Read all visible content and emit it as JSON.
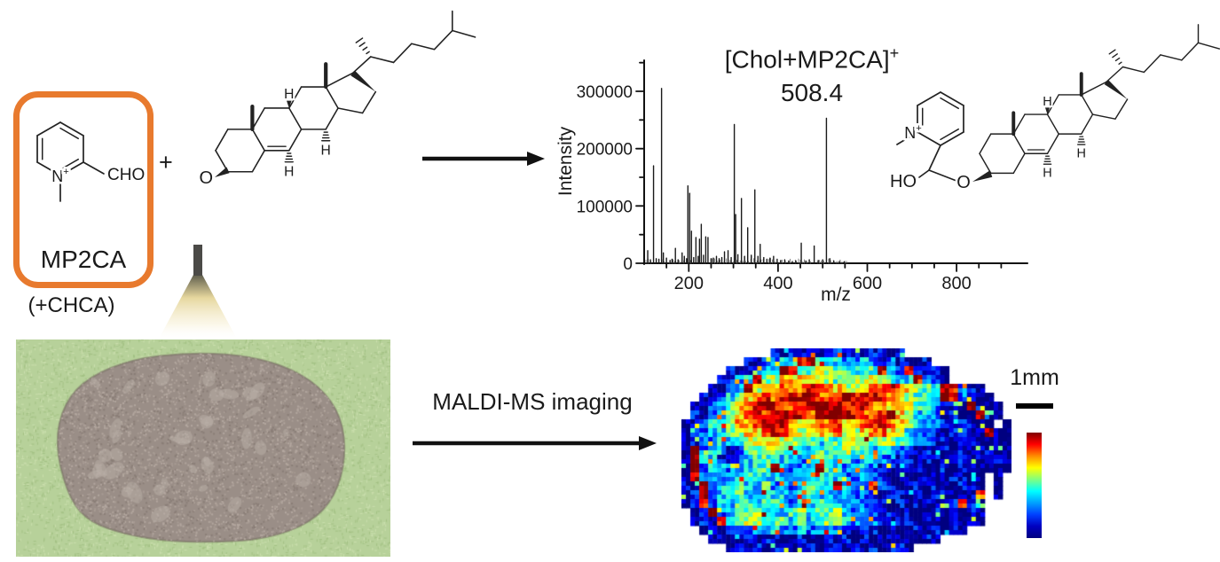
{
  "figure": {
    "accent_color": "#e87a2e",
    "labels": {
      "matrix_name": "MP2CA",
      "matrix_additive": "(+CHCA)",
      "plus_sign": "+",
      "maldi_arrow_label": "MALDI-MS imaging",
      "scale_bar_label": "1mm"
    },
    "tissue_photo": {
      "background_color": "#b7d19a",
      "tissue_color": "#9a8e87"
    }
  },
  "molecules": {
    "mp2ca": {
      "labels": {
        "n": "N",
        "charge": "+",
        "cho": "CHO"
      }
    },
    "cholesterol": {
      "labels": {
        "ho": "HO",
        "h_top": "H",
        "h_left": "H",
        "h_right": "H"
      }
    },
    "adduct": {
      "labels": {
        "n": "N",
        "charge": "+",
        "ho": "HO",
        "o": "O",
        "h_top": "H",
        "h_left": "H",
        "h_right": "H"
      }
    }
  },
  "chart_data": [
    {
      "type": "line",
      "subtype": "mass-spectrum-sticks",
      "title": "[Chol+MP2CA]+",
      "title_main": "[Chol+MP2CA]",
      "title_sup": "+",
      "annotation": "508.4",
      "xlabel": "m/z",
      "ylabel": "Intensity",
      "xlim": [
        100,
        950
      ],
      "ylim": [
        0,
        350000
      ],
      "x_major_ticks": [
        200,
        400,
        600,
        800
      ],
      "x_minor_tick_step": 50,
      "y_major_ticks": [
        0,
        100000,
        200000,
        300000
      ],
      "y_minor_tick_step": 50000,
      "grid": false,
      "peaks": [
        [
          108,
          22000
        ],
        [
          114,
          6000
        ],
        [
          121,
          170000
        ],
        [
          127,
          8000
        ],
        [
          133,
          7000
        ],
        [
          139,
          305000
        ],
        [
          143,
          18000
        ],
        [
          150,
          9000
        ],
        [
          158,
          5000
        ],
        [
          163,
          7000
        ],
        [
          170,
          26000
        ],
        [
          176,
          6000
        ],
        [
          185,
          18000
        ],
        [
          190,
          12000
        ],
        [
          195,
          8000
        ],
        [
          198,
          135000
        ],
        [
          202,
          122000
        ],
        [
          206,
          56000
        ],
        [
          211,
          10000
        ],
        [
          216,
          45000
        ],
        [
          221,
          12000
        ],
        [
          224,
          42000
        ],
        [
          228,
          68000
        ],
        [
          233,
          14000
        ],
        [
          238,
          46000
        ],
        [
          243,
          45000
        ],
        [
          250,
          8000
        ],
        [
          255,
          9000
        ],
        [
          262,
          12000
        ],
        [
          268,
          8000
        ],
        [
          274,
          10000
        ],
        [
          280,
          20000
        ],
        [
          288,
          22000
        ],
        [
          295,
          10000
        ],
        [
          302,
          242000
        ],
        [
          305,
          85000
        ],
        [
          310,
          15000
        ],
        [
          318,
          113000
        ],
        [
          325,
          12000
        ],
        [
          332,
          62000
        ],
        [
          340,
          14000
        ],
        [
          348,
          128000
        ],
        [
          355,
          12000
        ],
        [
          360,
          33000
        ],
        [
          368,
          10000
        ],
        [
          375,
          7000
        ],
        [
          382,
          9000
        ],
        [
          390,
          12000
        ],
        [
          398,
          7000
        ],
        [
          406,
          5000
        ],
        [
          415,
          6000
        ],
        [
          424,
          4000
        ],
        [
          432,
          3000
        ],
        [
          440,
          4000
        ],
        [
          452,
          35000
        ],
        [
          462,
          4000
        ],
        [
          470,
          6000
        ],
        [
          481,
          30000
        ],
        [
          490,
          5000
        ],
        [
          500,
          6000
        ],
        [
          508.4,
          253000
        ],
        [
          516,
          8000
        ],
        [
          525,
          4000
        ],
        [
          538,
          3000
        ],
        [
          548,
          2500
        ]
      ]
    },
    {
      "type": "heatmap",
      "description": "MALDI-MS ion image of [Chol+MP2CA]+ (m/z 508.4) in a brain tissue section",
      "colormap": "jet",
      "levels": "characters 0-9 = relative intensity low-high, . = outside tissue",
      "scale_bar": "1mm",
      "colorbar_stops": [
        "#800000",
        "#ff0000",
        "#ff8c00",
        "#ffff00",
        "#80ff80",
        "#00ffff",
        "#00a0ff",
        "#0040ff",
        "#0000c0",
        "#000080"
      ],
      "grid_rows": [
        "..........101121121101101............",
        ".......102233894332232121101.........",
        ".....1012339844554434483282110.......",
        "....11239456666554455654338210.......",
        "...1023956677787765567787654398210...",
        "..102346787898877898888765443982100..",
        ".10234678987789999888776654321109100.",
        ".10235688789987899987789653321100910.",
        "01244576788966677866788765322101100.0",
        "0123345667876556675567765322101100900",
        "0122334556655443445544554322110110000",
        "0923311445544334445443332211010101100",
        "0933112344333234434233221101100101010",
        "0923322344932239432332110110010110000",
        "0823233443322334332232101101001100.0.",
        "1092334334232343393228210110100110.0.",
        "0192334324332343323221011010110017.0.",
        "0182334434432434432321101011011710...",
        ".019234454334534453232110101101010...",
        ".010834553443534553232101101001010...",
        "..010112333223223210110100101010.....",
        "...01001011011011010100101010........",
        ".....010101101101101010110..........."
      ]
    }
  ]
}
